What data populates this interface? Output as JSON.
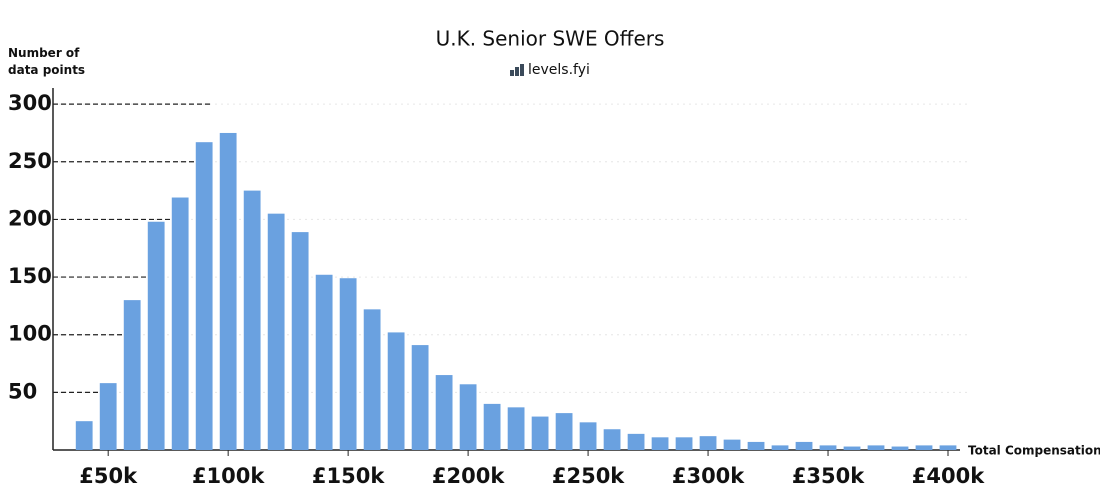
{
  "chart_data": {
    "type": "bar",
    "title": "U.K. Senior SWE Offers",
    "subtitle": "levels.fyi",
    "y_label": "Number of data points",
    "x_label": "Total Compensation",
    "color": "#6aa1e0",
    "x": [
      40000,
      50000,
      60000,
      70000,
      80000,
      90000,
      100000,
      110000,
      120000,
      130000,
      140000,
      150000,
      160000,
      170000,
      180000,
      190000,
      200000,
      210000,
      220000,
      230000,
      240000,
      250000,
      260000,
      270000,
      280000,
      290000,
      300000,
      310000,
      320000,
      330000,
      340000,
      350000,
      360000,
      370000,
      380000,
      390000,
      400000
    ],
    "values": [
      25,
      58,
      130,
      198,
      219,
      267,
      275,
      225,
      205,
      189,
      152,
      149,
      122,
      102,
      91,
      65,
      57,
      40,
      37,
      29,
      32,
      24,
      18,
      14,
      11,
      11,
      12,
      9,
      7,
      4,
      7,
      4,
      3,
      4,
      3,
      4,
      4
    ],
    "xlim": [
      27000,
      405000
    ],
    "xticks": [
      {
        "value": 50000,
        "label": "£50k"
      },
      {
        "value": 100000,
        "label": "£100k"
      },
      {
        "value": 150000,
        "label": "£150k"
      },
      {
        "value": 200000,
        "label": "£200k"
      },
      {
        "value": 250000,
        "label": "£250k"
      },
      {
        "value": 300000,
        "label": "£300k"
      },
      {
        "value": 350000,
        "label": "£350k"
      },
      {
        "value": 400000,
        "label": "£400k"
      }
    ],
    "ylim": [
      0,
      314
    ],
    "yticks": [
      50,
      100,
      150,
      200,
      250,
      300
    ],
    "grid": true
  }
}
